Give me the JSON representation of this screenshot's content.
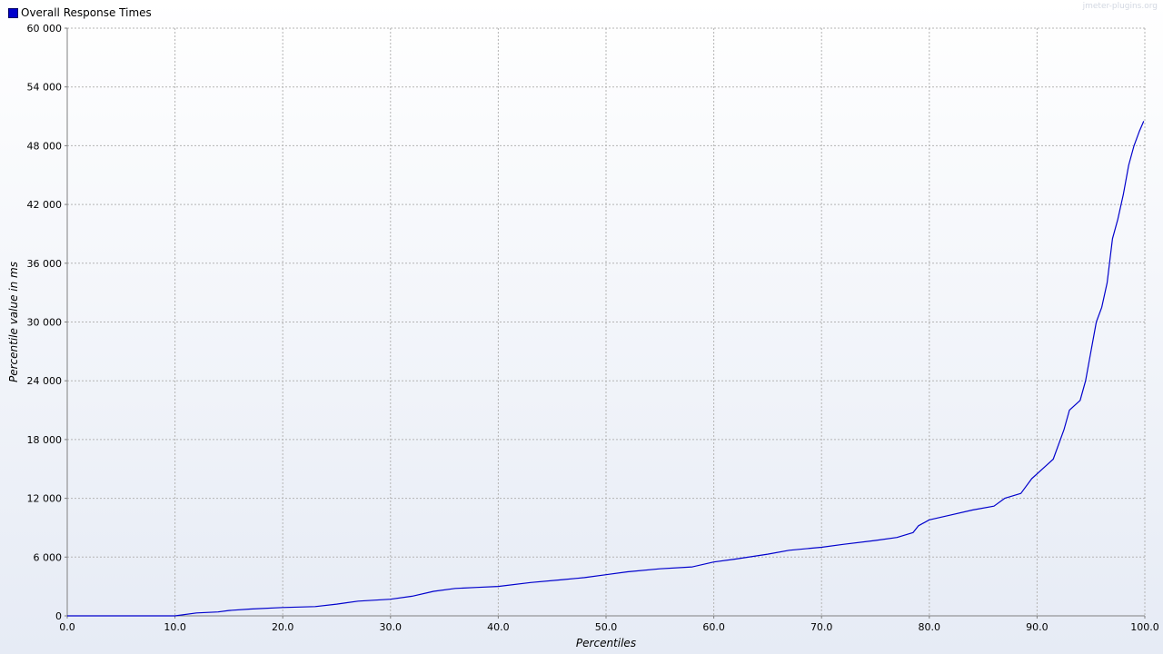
{
  "legend": {
    "label": "Overall Response Times",
    "color": "#0000cc"
  },
  "watermark": "jmeter-plugins.org",
  "chart_data": {
    "type": "line",
    "title": "",
    "xlabel": "Percentiles",
    "ylabel": "Percentile value in ms",
    "xlim": [
      0,
      100
    ],
    "ylim": [
      0,
      60000
    ],
    "x_ticks": [
      0,
      10,
      20,
      30,
      40,
      50,
      60,
      70,
      80,
      90,
      100
    ],
    "x_tick_labels": [
      "0.0",
      "10.0",
      "20.0",
      "30.0",
      "40.0",
      "50.0",
      "60.0",
      "70.0",
      "80.0",
      "90.0",
      "100.0"
    ],
    "y_ticks": [
      0,
      6000,
      12000,
      18000,
      24000,
      30000,
      36000,
      42000,
      48000,
      54000,
      60000
    ],
    "y_tick_labels": [
      "0",
      "6 000",
      "12 000",
      "18 000",
      "24 000",
      "30 000",
      "36 000",
      "42 000",
      "48 000",
      "54 000",
      "60 000"
    ],
    "grid": true,
    "legend_position": "top-left",
    "series": [
      {
        "name": "Overall Response Times",
        "color": "#0000cc",
        "x": [
          0,
          10,
          12,
          14,
          15,
          17,
          20,
          23,
          25,
          27,
          30,
          32,
          34,
          36,
          38,
          40,
          43,
          46,
          48,
          50,
          52,
          55,
          58,
          60,
          62,
          65,
          67,
          70,
          72,
          75,
          77,
          78.5,
          79,
          80,
          82,
          84,
          86,
          87,
          88.5,
          89.5,
          90.5,
          91.5,
          92,
          92.5,
          93,
          94,
          94.5,
          95,
          95.5,
          96,
          96.5,
          97,
          97.5,
          98,
          98.5,
          99,
          99.5,
          99.9
        ],
        "values": [
          0,
          0,
          300,
          400,
          550,
          700,
          850,
          950,
          1200,
          1500,
          1700,
          2000,
          2500,
          2800,
          2900,
          3000,
          3400,
          3700,
          3900,
          4200,
          4500,
          4800,
          5000,
          5500,
          5800,
          6300,
          6700,
          7000,
          7300,
          7700,
          8000,
          8500,
          9200,
          9800,
          10300,
          10800,
          11200,
          12000,
          12500,
          14000,
          15000,
          16000,
          17500,
          19000,
          21000,
          22000,
          24000,
          27000,
          30000,
          31500,
          34000,
          38500,
          40500,
          43000,
          46000,
          48000,
          49500,
          50500
        ]
      }
    ]
  }
}
